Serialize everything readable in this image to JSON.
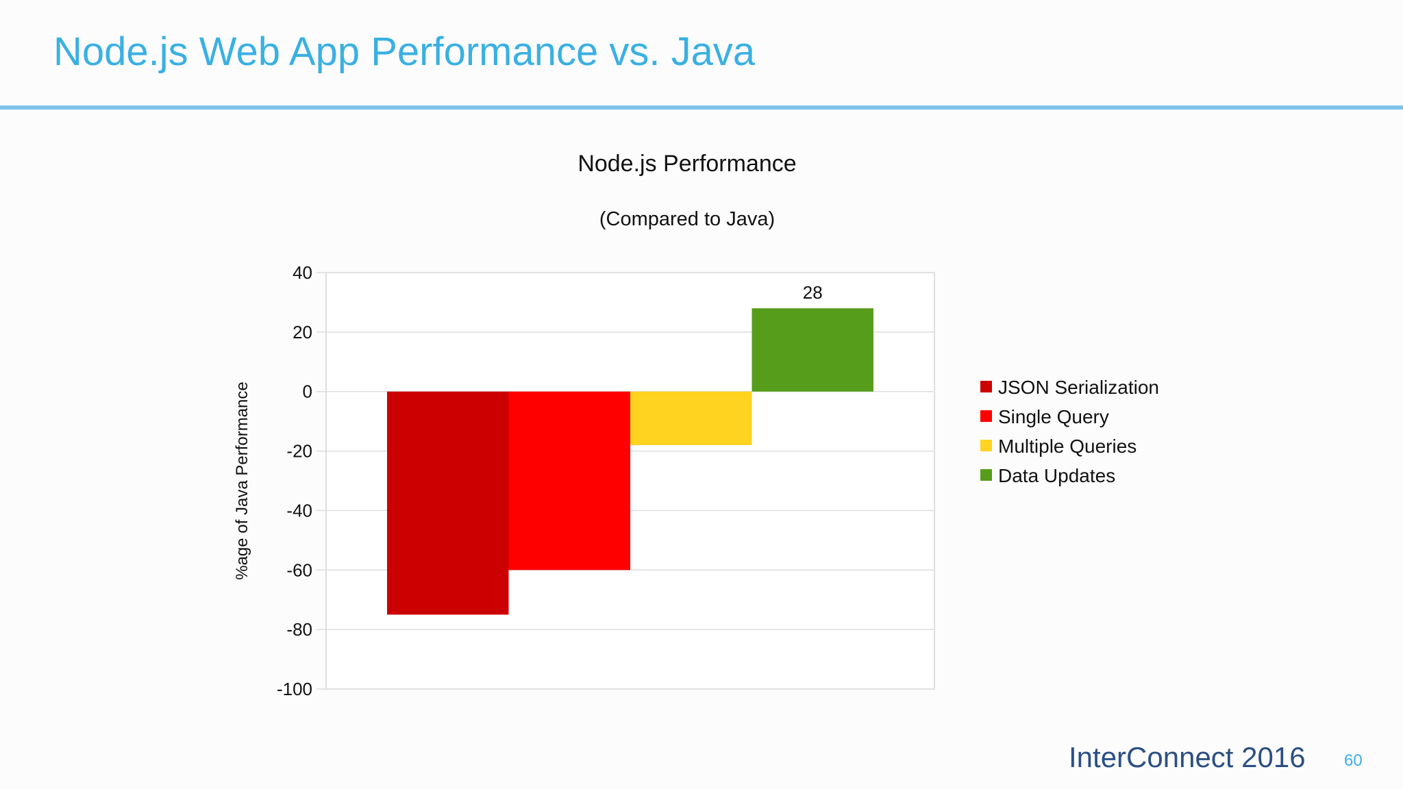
{
  "slide": {
    "title": "Node.js Web App Performance vs. Java",
    "brand": "InterConnect 2016",
    "page_number": "60"
  },
  "chart_data": {
    "type": "bar",
    "title": "Node.js Performance",
    "subtitle": "(Compared to Java)",
    "xlabel": "",
    "ylabel": "%age of Java Performance",
    "ylim": [
      -100,
      40
    ],
    "yticks": [
      40,
      20,
      0,
      -20,
      -40,
      -60,
      -80,
      -100
    ],
    "ytick_labels": [
      "40",
      "20",
      "0",
      "-20",
      "-40",
      "-60",
      "-80",
      "-100"
    ],
    "grid": true,
    "legend_position": "right",
    "series": [
      {
        "name": "JSON Serialization",
        "value": -75,
        "color": "#cc0000",
        "data_label": ""
      },
      {
        "name": "Single Query",
        "value": -60,
        "color": "#ff0000",
        "data_label": ""
      },
      {
        "name": "Multiple Queries",
        "value": -18,
        "color": "#ffd320",
        "data_label": ""
      },
      {
        "name": "Data Updates",
        "value": 28,
        "color": "#579d1c",
        "data_label": "28"
      }
    ]
  }
}
